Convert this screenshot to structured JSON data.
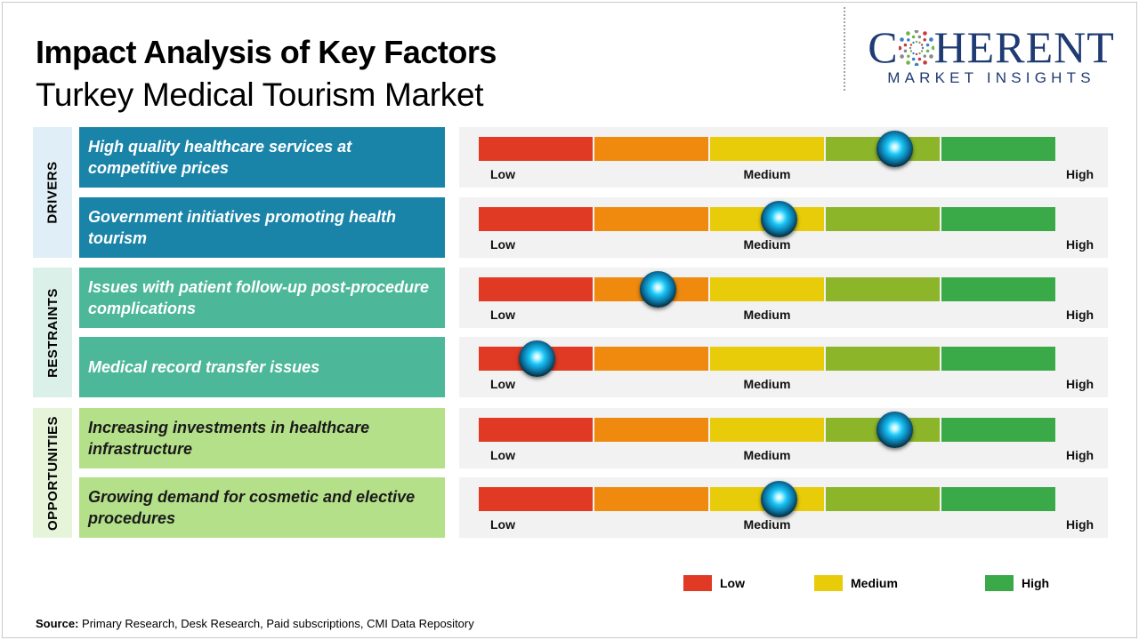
{
  "header": {
    "title": "Impact Analysis of Key Factors",
    "subtitle": "Turkey Medical Tourism Market"
  },
  "logo": {
    "main_prefix": "C",
    "main_suffix": "HERENT",
    "sub": "MARKET INSIGHTS",
    "colors": {
      "text": "#1f3b73",
      "dots": [
        "#3a7fc1",
        "#6fb44a",
        "#8a8a8a",
        "#c43c3c"
      ]
    }
  },
  "categories": [
    {
      "label": "DRIVERS",
      "bg": "#dfeef7",
      "factor_color": "#1a84a8"
    },
    {
      "label": "RESTRAINTS",
      "bg": "#dcf0ea",
      "factor_color": "#4db799"
    },
    {
      "label": "OPPORTUNITIES",
      "bg": "#e6f5d9",
      "factor_color": "#b5e08a"
    }
  ],
  "scale": {
    "low_label": "Low",
    "medium_label": "Medium",
    "high_label": "High",
    "segment_colors": [
      "#e03a24",
      "#ef8a0e",
      "#e8cc0a",
      "#8db52a",
      "#3aaa48"
    ]
  },
  "chart_data": {
    "type": "gauge",
    "scale_min": 0,
    "scale_max": 1,
    "rows": [
      {
        "category": "DRIVERS",
        "factor": "High quality healthcare services at competitive prices",
        "impact": 0.72
      },
      {
        "category": "DRIVERS",
        "factor": "Government initiatives promoting health tourism",
        "impact": 0.52
      },
      {
        "category": "RESTRAINTS",
        "factor": "Issues with patient follow-up post-procedure complications",
        "impact": 0.31
      },
      {
        "category": "RESTRAINTS",
        "factor": "Medical record transfer issues",
        "impact": 0.1
      },
      {
        "category": "OPPORTUNITIES",
        "factor": "Increasing investments in healthcare infrastructure",
        "impact": 0.72
      },
      {
        "category": "OPPORTUNITIES",
        "factor": "Growing demand for cosmetic and elective procedures",
        "impact": 0.52
      }
    ]
  },
  "legend": [
    {
      "label": "Low",
      "color": "#e03a24"
    },
    {
      "label": "Medium",
      "color": "#e8cc0a"
    },
    {
      "label": "High",
      "color": "#3aaa48"
    }
  ],
  "source": {
    "prefix": "Source:",
    "text": "Primary Research, Desk Research, Paid subscriptions, CMI Data Repository"
  }
}
